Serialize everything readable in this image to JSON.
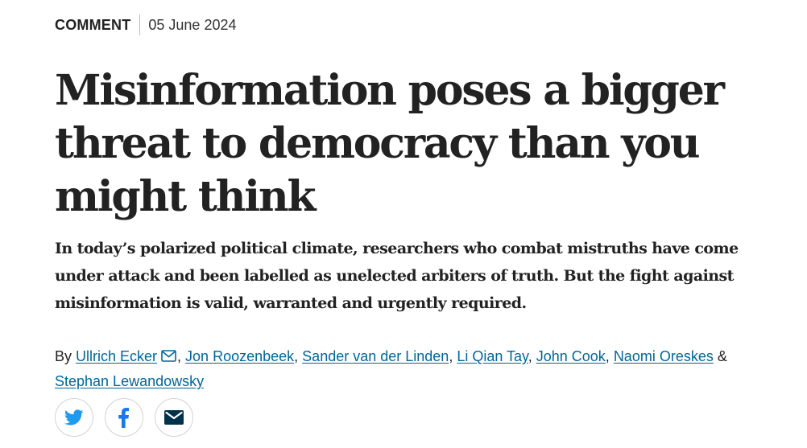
{
  "article": {
    "type": "COMMENT",
    "date": "05 June 2024",
    "title": "Misinformation poses a bigger threat to democracy than you might think",
    "standfirst": "In today’s polarized political climate, researchers who combat mistruths have come under attack and been labelled as unelected arbiters of truth. But the fight against misinformation is valid, warranted and urgently required."
  },
  "byline": {
    "prefix": "By ",
    "authors": [
      "Ullrich Ecker",
      "Jon Roozenbeek",
      "Sander van der Linden",
      "Li Qian Tay",
      "John Cook",
      "Naomi Oreskes",
      "Stephan Lewandowsky"
    ],
    "separator": ", ",
    "last_separator": " & "
  },
  "share": {
    "buttons": [
      {
        "icon": "twitter-icon"
      },
      {
        "icon": "facebook-icon"
      },
      {
        "icon": "email-icon"
      }
    ]
  },
  "colors": {
    "text": "#222222",
    "link": "#006699",
    "twitter_blue": "#1D9BF0",
    "facebook_blue": "#1877F2",
    "email_navy": "#01324B",
    "divider": "#bbbbbb"
  }
}
